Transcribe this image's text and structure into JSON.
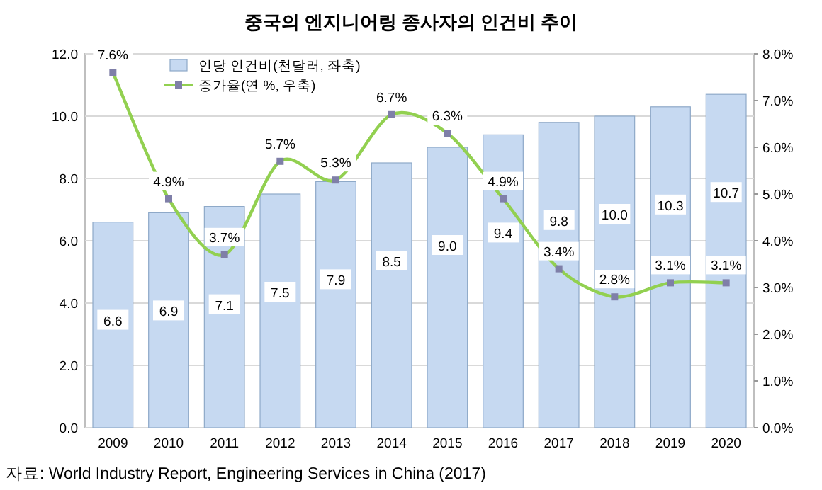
{
  "chart_data": {
    "type": "bar",
    "title": "중국의 엔지니어링 종사자의 인건비 추이",
    "categories": [
      "2009",
      "2010",
      "2011",
      "2012",
      "2013",
      "2014",
      "2015",
      "2016",
      "2017",
      "2018",
      "2019",
      "2020"
    ],
    "series": [
      {
        "name": "인당 인건비(천달러, 좌축)",
        "color": "#c6d9f1",
        "values": [
          6.6,
          6.9,
          7.1,
          7.5,
          7.9,
          8.5,
          9.0,
          9.4,
          9.8,
          10.0,
          10.3,
          10.7
        ],
        "value_labels": [
          "6.6",
          "6.9",
          "7.1",
          "7.5",
          "7.9",
          "8.5",
          "9.0",
          "9.4",
          "9.8",
          "10.0",
          "10.3",
          "10.7"
        ]
      },
      {
        "name": "증가율(연 %, 우축)",
        "type": "line",
        "axis": "y2",
        "color": "#92d050",
        "marker": "square",
        "values": [
          7.6,
          4.9,
          3.7,
          5.7,
          5.3,
          6.7,
          6.3,
          4.9,
          3.4,
          2.8,
          3.1,
          3.1
        ],
        "value_labels": [
          "7.6%",
          "4.9%",
          "3.7%",
          "5.7%",
          "5.3%",
          "6.7%",
          "6.3%",
          "4.9%",
          "3.4%",
          "2.8%",
          "3.1%",
          "3.1%"
        ]
      }
    ],
    "ylim": [
      0,
      12
    ],
    "yticks": [
      {
        "value": 0,
        "label": "0.0"
      },
      {
        "value": 2,
        "label": "2.0"
      },
      {
        "value": 4,
        "label": "4.0"
      },
      {
        "value": 6,
        "label": "6.0"
      },
      {
        "value": 8,
        "label": "8.0"
      },
      {
        "value": 10,
        "label": "10.0"
      },
      {
        "value": 12,
        "label": "12.0"
      }
    ],
    "y2lim": [
      0,
      8
    ],
    "y2ticks": [
      {
        "value": 0,
        "label": "0.0%"
      },
      {
        "value": 1,
        "label": "1.0%"
      },
      {
        "value": 2,
        "label": "2.0%"
      },
      {
        "value": 3,
        "label": "3.0%"
      },
      {
        "value": 4,
        "label": "4.0%"
      },
      {
        "value": 5,
        "label": "5.0%"
      },
      {
        "value": 6,
        "label": "6.0%"
      },
      {
        "value": 7,
        "label": "7.0%"
      },
      {
        "value": 8,
        "label": "8.0%"
      }
    ],
    "grid": "y",
    "legend": "top left",
    "annotations": [
      "자료: World Industry Report, Engineering Services in China (2017)"
    ]
  }
}
